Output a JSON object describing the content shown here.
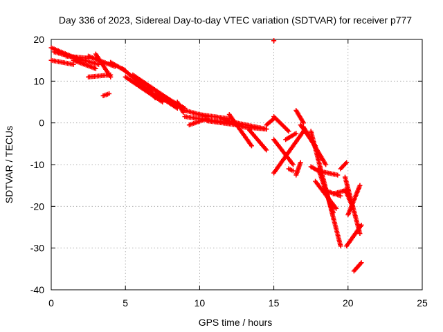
{
  "chart_data": {
    "type": "scatter",
    "title": "Day 336 of 2023, Sidereal Day-to-day VTEC variation (SDTVAR) for receiver p777",
    "xlabel": "GPS time / hours",
    "ylabel": "SDTVAR / TECUs",
    "xlim": [
      0,
      25
    ],
    "ylim": [
      -40,
      20
    ],
    "xticks": [
      "0",
      "5",
      "10",
      "15",
      "20",
      "25"
    ],
    "yticks": [
      "-40",
      "-30",
      "-20",
      "-10",
      "0",
      "10",
      "20"
    ],
    "xtick_values": [
      0,
      5,
      10,
      15,
      20,
      25
    ],
    "ytick_values": [
      -40,
      -30,
      -20,
      -10,
      0,
      10,
      20
    ],
    "grid": true,
    "marker": "plus",
    "color": "#ff0000",
    "series": [
      {
        "name": "tracks",
        "segments": [
          {
            "from": [
              0.0,
              18.0
            ],
            "to": [
              2.0,
              15.0
            ]
          },
          {
            "from": [
              0.0,
              15.0
            ],
            "to": [
              1.5,
              14.0
            ]
          },
          {
            "from": [
              0.2,
              17.0
            ],
            "to": [
              3.2,
              14.0
            ]
          },
          {
            "from": [
              1.0,
              16.0
            ],
            "to": [
              2.5,
              15.5
            ]
          },
          {
            "from": [
              1.5,
              15.0
            ],
            "to": [
              3.0,
              13.0
            ]
          },
          {
            "from": [
              2.5,
              11.0
            ],
            "to": [
              4.0,
              11.5
            ]
          },
          {
            "from": [
              2.5,
              16.0
            ],
            "to": [
              4.3,
              13.5
            ]
          },
          {
            "from": [
              3.0,
              16.5
            ],
            "to": [
              4.0,
              11.0
            ]
          },
          {
            "from": [
              4.0,
              14.5
            ],
            "to": [
              5.0,
              12.5
            ]
          },
          {
            "from": [
              3.5,
              6.5
            ],
            "to": [
              3.9,
              7.0
            ]
          },
          {
            "from": [
              4.8,
              13.0
            ],
            "to": [
              6.5,
              8.0
            ]
          },
          {
            "from": [
              5.0,
              11.0
            ],
            "to": [
              7.5,
              5.0
            ]
          },
          {
            "from": [
              5.5,
              11.5
            ],
            "to": [
              8.0,
              5.5
            ]
          },
          {
            "from": [
              6.5,
              9.0
            ],
            "to": [
              7.0,
              6.0
            ]
          },
          {
            "from": [
              7.0,
              7.0
            ],
            "to": [
              8.5,
              3.5
            ]
          },
          {
            "from": [
              7.5,
              6.5
            ],
            "to": [
              9.0,
              3.5
            ]
          },
          {
            "from": [
              8.5,
              5.0
            ],
            "to": [
              8.9,
              2.5
            ]
          },
          {
            "from": [
              9.0,
              3.0
            ],
            "to": [
              10.5,
              1.5
            ]
          },
          {
            "from": [
              9.3,
              -0.5
            ],
            "to": [
              10.5,
              1.0
            ]
          },
          {
            "from": [
              9.0,
              1.5
            ],
            "to": [
              12.0,
              0.0
            ]
          },
          {
            "from": [
              10.0,
              2.0
            ],
            "to": [
              12.0,
              1.0
            ]
          },
          {
            "from": [
              10.5,
              0.5
            ],
            "to": [
              12.5,
              -0.5
            ]
          },
          {
            "from": [
              11.5,
              1.0
            ],
            "to": [
              13.0,
              -1.0
            ]
          },
          {
            "from": [
              12.0,
              2.0
            ],
            "to": [
              13.5,
              -5.5
            ]
          },
          {
            "from": [
              12.5,
              0.0
            ],
            "to": [
              14.5,
              -1.5
            ]
          },
          {
            "from": [
              13.0,
              -1.0
            ],
            "to": [
              14.5,
              -1.5
            ]
          },
          {
            "from": [
              13.3,
              -1.5
            ],
            "to": [
              14.5,
              -6.5
            ]
          },
          {
            "from": [
              14.5,
              -0.5
            ],
            "to": [
              15.0,
              1.0
            ]
          },
          {
            "from": [
              15.0,
              1.5
            ],
            "to": [
              16.0,
              -2.0
            ]
          },
          {
            "from": [
              15.0,
              -12.0
            ],
            "to": [
              17.0,
              -2.0
            ]
          },
          {
            "from": [
              15.0,
              -4.0
            ],
            "to": [
              16.3,
              -10.0
            ]
          },
          {
            "from": [
              15.8,
              -4.0
            ],
            "to": [
              16.5,
              -2.5
            ]
          },
          {
            "from": [
              16.0,
              -11.0
            ],
            "to": [
              16.3,
              -11.5
            ]
          },
          {
            "from": [
              16.5,
              -12.5
            ],
            "to": [
              16.8,
              -9.5
            ]
          },
          {
            "from": [
              16.5,
              3.0
            ],
            "to": [
              17.0,
              0.0
            ]
          },
          {
            "from": [
              16.8,
              -0.5
            ],
            "to": [
              17.8,
              -5.5
            ]
          },
          {
            "from": [
              17.0,
              -1.0
            ],
            "to": [
              18.5,
              -10.0
            ]
          },
          {
            "from": [
              17.5,
              -2.0
            ],
            "to": [
              19.5,
              -29.5
            ]
          },
          {
            "from": [
              17.5,
              -10.5
            ],
            "to": [
              18.0,
              -11.5
            ]
          },
          {
            "from": [
              18.0,
              -11.0
            ],
            "to": [
              19.0,
              -21.5
            ]
          },
          {
            "from": [
              18.0,
              -11.5
            ],
            "to": [
              19.3,
              -12.5
            ]
          },
          {
            "from": [
              17.8,
              -14.0
            ],
            "to": [
              19.2,
              -20.5
            ]
          },
          {
            "from": [
              18.3,
              -16.0
            ],
            "to": [
              19.5,
              -17.5
            ]
          },
          {
            "from": [
              19.0,
              -17.0
            ],
            "to": [
              20.0,
              -16.0
            ]
          },
          {
            "from": [
              19.5,
              -11.0
            ],
            "to": [
              19.9,
              -9.5
            ]
          },
          {
            "from": [
              19.8,
              -16.0
            ],
            "to": [
              20.3,
              -20.0
            ]
          },
          {
            "from": [
              20.0,
              -22.0
            ],
            "to": [
              20.8,
              -15.0
            ]
          },
          {
            "from": [
              19.8,
              -13.0
            ],
            "to": [
              20.8,
              -26.5
            ]
          },
          {
            "from": [
              19.9,
              -29.5
            ],
            "to": [
              20.9,
              -24.5
            ]
          },
          {
            "from": [
              20.4,
              -35.5
            ],
            "to": [
              20.9,
              -33.5
            ]
          },
          {
            "from": [
              15.0,
              19.7
            ],
            "to": [
              15.0,
              19.7
            ]
          }
        ]
      }
    ]
  }
}
